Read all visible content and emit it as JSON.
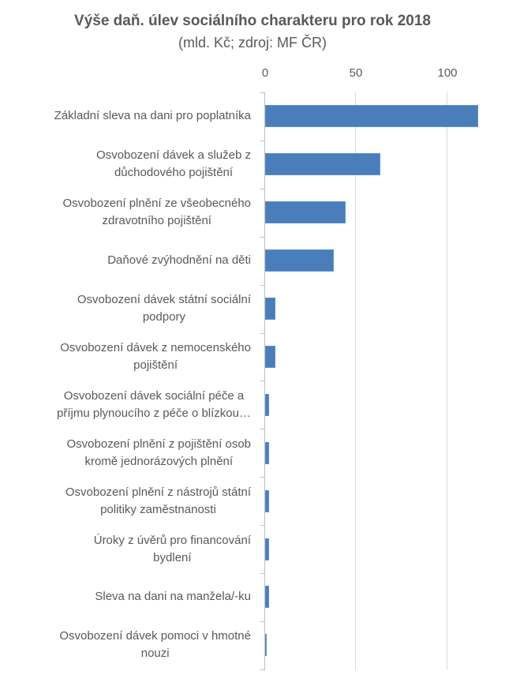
{
  "chart_data": {
    "type": "bar",
    "orientation": "horizontal",
    "title": "Výše daň. úlev sociálního charakteru pro rok 2018",
    "subtitle": "(mld. Kč; zdroj: MF ČR)",
    "xlabel": "",
    "ylabel": "",
    "xlim": [
      0,
      117
    ],
    "x_ticks": [
      "0",
      "50",
      "100"
    ],
    "x_axis_position": "top",
    "grid": "vertical",
    "legend": "none",
    "bar_color": "#4a7ebb",
    "categories": [
      "Základní sleva na dani pro poplatníka",
      "Osvobození dávek a služeb z důchodového pojištění",
      "Osvobození plnění ze všeobecného zdravotního pojištění",
      "Daňové zvýhodnění na děti",
      "Osvobození dávek státní sociální podpory",
      "Osvobození dávek z nemocenského pojištění",
      "Osvobození dávek sociální péče a příjmu plynoucího z péče o blízkou…",
      "Osvobození plnění z pojištění osob kromě jednorázových plnění",
      "Osvobození plnění z nástrojů státní politiky zaměstnanosti",
      "Úroky z úvěrů pro financování bydlení",
      "Sleva na dani na manžela/-ku",
      "Osvobození dávek pomoci v hmotné nouzi"
    ],
    "values": [
      117,
      63,
      44,
      37.5,
      5.5,
      5.5,
      2,
      2,
      2,
      2,
      2,
      0.1
    ]
  },
  "labels": [
    {
      "line1": "Základní sleva na dani pro poplatníka",
      "line2": ""
    },
    {
      "line1": "Osvobození dávek a služeb z",
      "line2": "důchodového pojištění"
    },
    {
      "line1": "Osvobození plnění ze všeobecného",
      "line2": "zdravotního pojištění"
    },
    {
      "line1": "Daňové zvýhodnění na děti",
      "line2": ""
    },
    {
      "line1": "Osvobození dávek státní sociální",
      "line2": "podpory"
    },
    {
      "line1": "Osvobození dávek z nemocenského",
      "line2": "pojištění"
    },
    {
      "line1": "Osvobození dávek sociální péče a",
      "line2": "příjmu plynoucího z péče o blízkou…"
    },
    {
      "line1": "Osvobození plnění z pojištění osob",
      "line2": "kromě jednorázových plnění"
    },
    {
      "line1": "Osvobození plnění z nástrojů státní",
      "line2": "politiky zaměstnanosti"
    },
    {
      "line1": "Úroky z úvěrů pro financování",
      "line2": "bydlení"
    },
    {
      "line1": "Sleva na dani na manžela/-ku",
      "line2": ""
    },
    {
      "line1": "Osvobození dávek pomoci v hmotné",
      "line2": "nouzi"
    }
  ]
}
